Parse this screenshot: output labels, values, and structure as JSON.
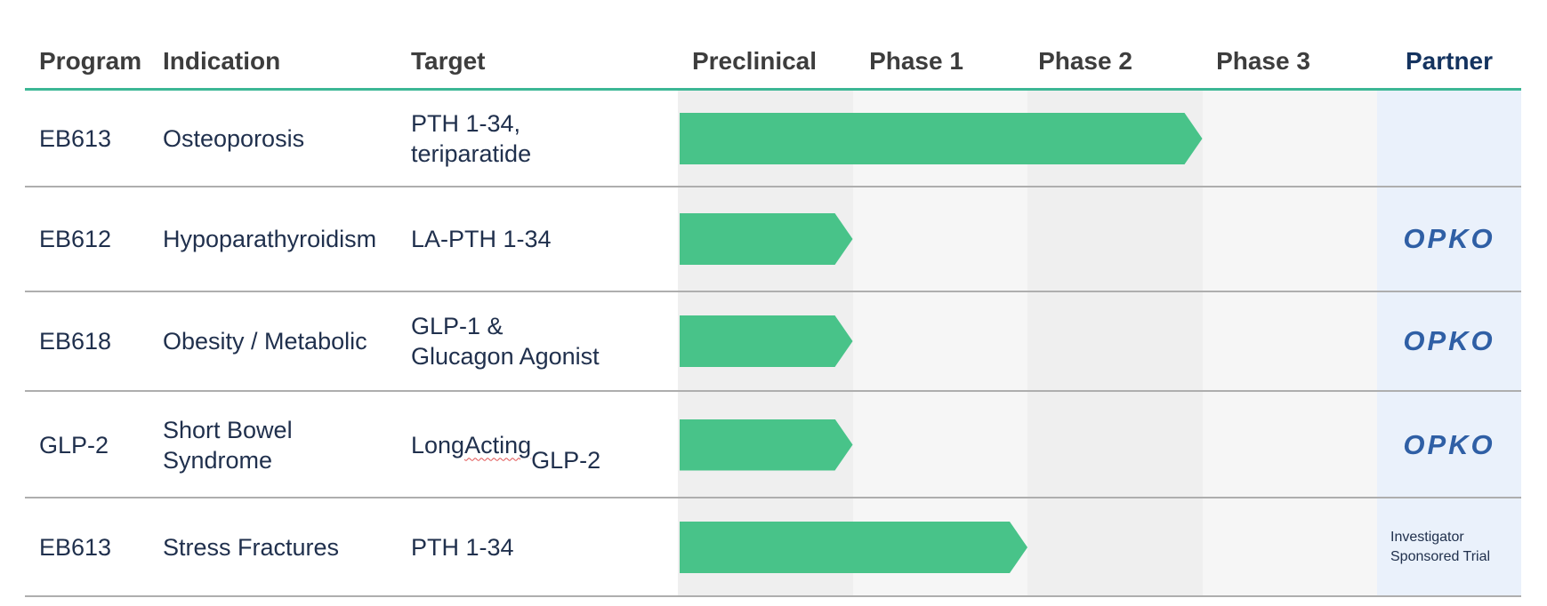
{
  "header": {
    "columns": [
      "Program",
      "Indication",
      "Target",
      "Preclinical",
      "Phase 1",
      "Phase 2",
      "Phase 3",
      "Partner"
    ]
  },
  "rows": [
    {
      "program": "EB613",
      "indication": "Osteoporosis",
      "target": "PTH 1-34,\nteriparatide",
      "partner": "",
      "partner_type": "none",
      "progress_phase_units": 3
    },
    {
      "program": "EB612",
      "indication": "Hypoparathyroidism",
      "target": "LA-PTH 1-34",
      "partner": "OPKO",
      "partner_type": "logo",
      "progress_phase_units": 1
    },
    {
      "program": "EB618",
      "indication": "Obesity / Metabolic",
      "target": "GLP-1 &\nGlucagon Agonist",
      "partner": "OPKO",
      "partner_type": "logo",
      "progress_phase_units": 1
    },
    {
      "program": "GLP-2",
      "indication": "Short Bowel\nSyndrome",
      "target": "Long Acting\nGLP-2",
      "target_parts": {
        "pre": "Long ",
        "misspelled": "Acting",
        "rest": "\nGLP-2"
      },
      "partner": "OPKO",
      "partner_type": "logo",
      "progress_phase_units": 1
    },
    {
      "program": "EB613",
      "indication": "Stress Fractures",
      "target": "PTH 1-34",
      "partner": "Investigator Sponsored Trial",
      "partner_type": "text",
      "progress_phase_units": 2
    }
  ],
  "colors": {
    "bar_green": "#48c389",
    "header_underline_teal": "#3cb795",
    "band_dark": "#efefef",
    "band_light": "#f6f6f6",
    "partner_column_bg": "#eaf1fb",
    "header_text": "#3d3d3d",
    "partner_header_text": "#14335f",
    "body_text": "#20304d",
    "opko_blue": "#2f5fa5",
    "row_divider": "#aeaeae",
    "spellcheck_squiggle": "#e05252"
  },
  "chart_data": {
    "type": "bar",
    "orientation": "horizontal",
    "title": "",
    "phase_columns": [
      "Preclinical",
      "Phase 1",
      "Phase 2",
      "Phase 3"
    ],
    "categories": [
      "EB613 — Osteoporosis (PTH 1-34, teriparatide)",
      "EB612 — Hypoparathyroidism (LA-PTH 1-34)",
      "EB618 — Obesity / Metabolic (GLP-1 & Glucagon Agonist)",
      "GLP-2 — Short Bowel Syndrome (Long Acting GLP-2)",
      "EB613 — Stress Fractures (PTH 1-34)"
    ],
    "values_phases_completed": [
      3,
      1,
      1,
      1,
      2
    ],
    "bar_spans_phase_units": [
      [
        0,
        3
      ],
      [
        0,
        1
      ],
      [
        0,
        1
      ],
      [
        0,
        1
      ],
      [
        0,
        2
      ]
    ],
    "value_meaning": "Number of phase columns spanned by each green arrow, starting at Preclinical (Preclinical=1, Phase 1=2, Phase 2=3, Phase 3=4)",
    "xlim": [
      0,
      4
    ],
    "legend": "none",
    "grid": "shaded phase columns",
    "bar_color": "#48c389"
  }
}
